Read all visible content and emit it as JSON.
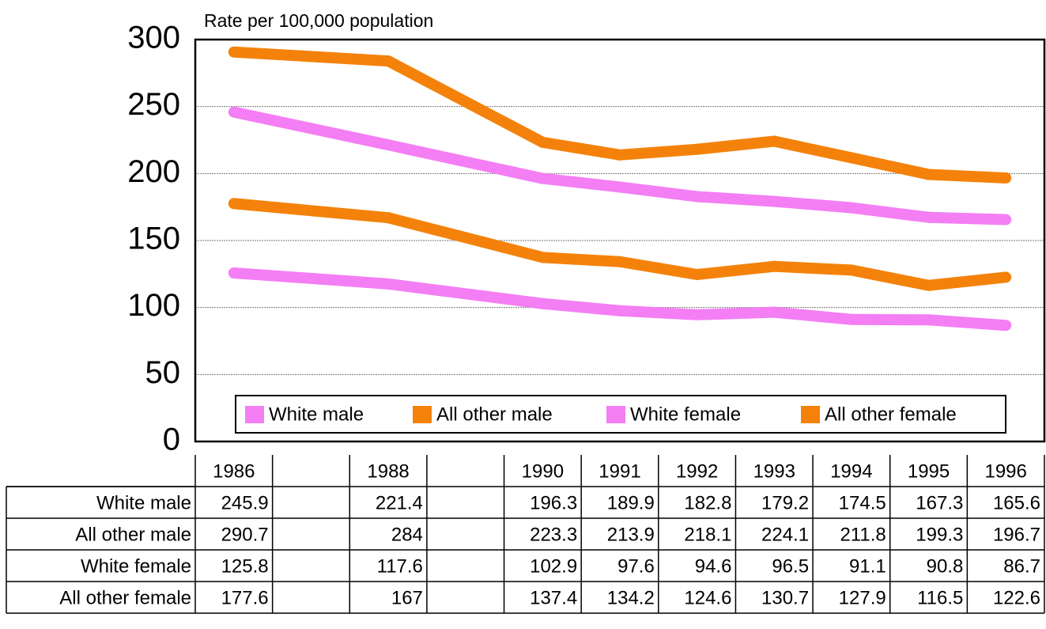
{
  "chart_data": {
    "type": "line",
    "y_label": "Rate per 100,000 population",
    "categories": [
      "1986",
      null,
      "1988",
      null,
      "1990",
      "1991",
      "1992",
      "1993",
      "1994",
      "1995",
      "1996"
    ],
    "series": [
      {
        "name": "White male",
        "color": "#f47ef4",
        "values": [
          245.9,
          null,
          221.4,
          null,
          196.3,
          189.9,
          182.8,
          179.2,
          174.5,
          167.3,
          165.6
        ]
      },
      {
        "name": "All other male",
        "color": "#f4820a",
        "values": [
          290.7,
          null,
          284,
          null,
          223.3,
          213.9,
          218.1,
          224.1,
          211.8,
          199.3,
          196.7
        ]
      },
      {
        "name": "White female",
        "color": "#f47ef4",
        "values": [
          125.8,
          null,
          117.6,
          null,
          102.9,
          97.6,
          94.6,
          96.5,
          91.1,
          90.8,
          86.7
        ]
      },
      {
        "name": "All other female",
        "color": "#f4820a",
        "values": [
          177.6,
          null,
          167,
          null,
          137.4,
          134.2,
          124.6,
          130.7,
          127.9,
          116.5,
          122.6
        ]
      }
    ],
    "ylim": [
      0,
      300
    ],
    "yticks": [
      0,
      50,
      100,
      150,
      200,
      250,
      300
    ],
    "grid": true
  }
}
